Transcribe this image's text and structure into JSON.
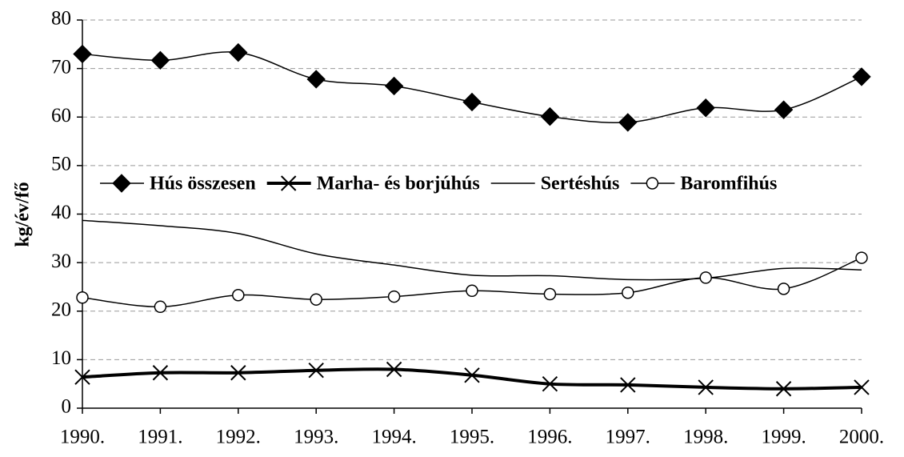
{
  "chart_data": {
    "type": "line",
    "y_label": "kg/év/fő",
    "categories": [
      "1990.",
      "1991.",
      "1992.",
      "1993.",
      "1994.",
      "1995.",
      "1996.",
      "1997.",
      "1998.",
      "1999.",
      "2000."
    ],
    "series": [
      {
        "name": "Hús összesen",
        "color": "#000000",
        "marker": "diamond",
        "values": [
          73.0,
          71.7,
          73.3,
          67.8,
          66.4,
          63.1,
          60.1,
          58.9,
          61.9,
          61.5,
          68.3
        ]
      },
      {
        "name": "Marha- és borjúhús",
        "color": "#000000",
        "marker": "x",
        "values": [
          6.4,
          7.3,
          7.3,
          7.8,
          8.0,
          6.8,
          5.0,
          4.8,
          4.3,
          4.0,
          4.3
        ]
      },
      {
        "name": "Sertéshús",
        "color": "#000000",
        "marker": "none",
        "values": [
          38.7,
          37.6,
          36.0,
          31.8,
          29.5,
          27.4,
          27.3,
          26.5,
          26.8,
          28.8,
          28.5
        ]
      },
      {
        "name": "Baromfihús",
        "color": "#000000",
        "marker": "circle",
        "values": [
          22.8,
          20.9,
          23.3,
          22.4,
          23.0,
          24.2,
          23.5,
          23.8,
          26.9,
          24.6,
          31.0
        ]
      }
    ],
    "ylim": [
      0,
      80
    ],
    "yticks": [
      0,
      10,
      20,
      30,
      40,
      50,
      60,
      70,
      80
    ],
    "grid": true,
    "legend": "center"
  }
}
